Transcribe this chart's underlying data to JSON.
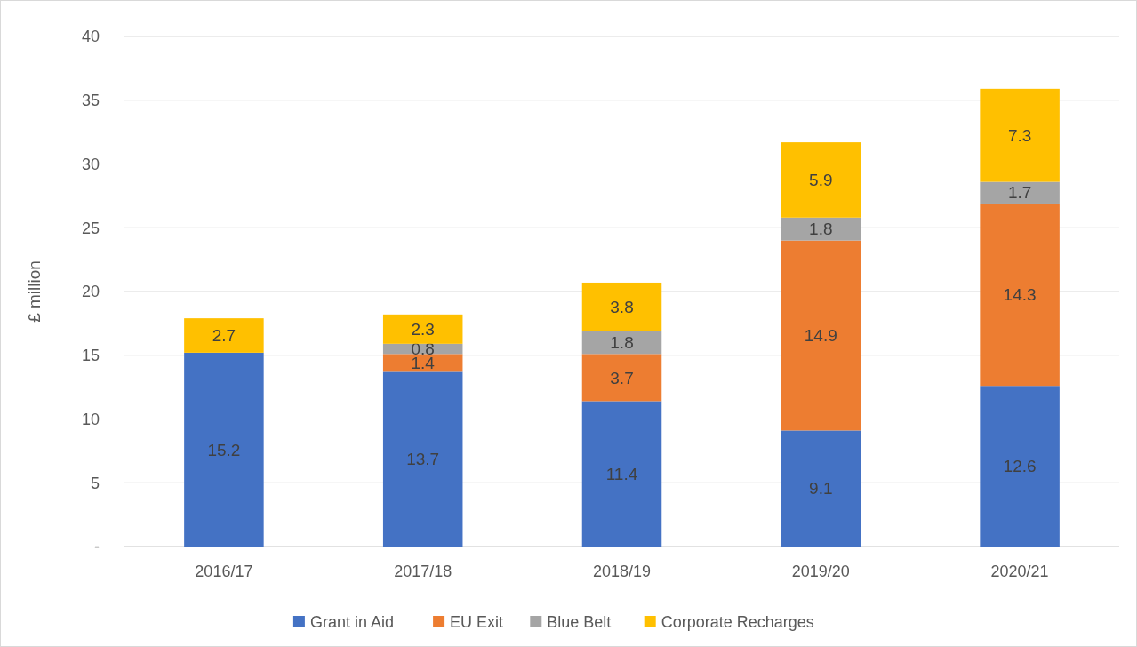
{
  "chart_data": {
    "type": "bar",
    "stacked": true,
    "ylabel": "£ million",
    "categories": [
      "2016/17",
      "2017/18",
      "2018/19",
      "2019/20",
      "2020/21"
    ],
    "series": [
      {
        "name": "Grant in Aid",
        "color": "#4472c4",
        "values": [
          15.2,
          13.7,
          11.4,
          9.1,
          12.6
        ]
      },
      {
        "name": "EU Exit",
        "color": "#ed7d31",
        "values": [
          null,
          1.4,
          3.7,
          14.9,
          14.3
        ]
      },
      {
        "name": "Blue Belt",
        "color": "#a5a5a5",
        "values": [
          null,
          0.8,
          1.8,
          1.8,
          1.7
        ]
      },
      {
        "name": "Corporate Recharges",
        "color": "#ffc000",
        "values": [
          2.7,
          2.3,
          3.8,
          5.9,
          7.3
        ]
      }
    ],
    "ylim": [
      0,
      40
    ],
    "yticks": [
      {
        "value": 0,
        "label": "-"
      },
      5,
      10,
      15,
      20,
      25,
      30,
      35,
      40
    ],
    "grid": "y",
    "legend": "bottom",
    "data_labels": true
  }
}
